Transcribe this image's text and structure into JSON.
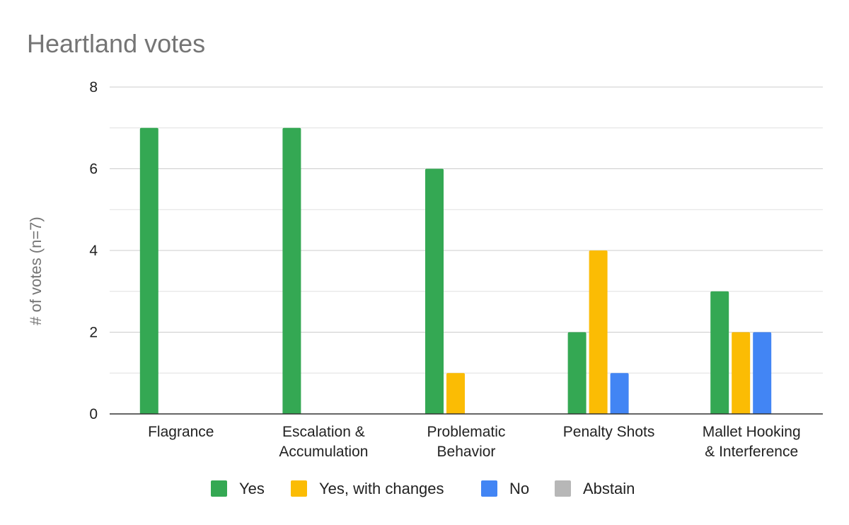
{
  "chart_data": {
    "type": "bar",
    "title": "Heartland votes",
    "xlabel": "",
    "ylabel": "# of votes (n=7)",
    "ylim": [
      0,
      8
    ],
    "yticks": [
      0,
      2,
      4,
      6,
      8
    ],
    "grid": true,
    "legend_position": "bottom",
    "categories": [
      [
        "Flagrance"
      ],
      [
        "Escalation &",
        "Accumulation"
      ],
      [
        "Problematic",
        "Behavior"
      ],
      [
        "Penalty Shots"
      ],
      [
        "Mallet Hooking",
        "& Interference"
      ]
    ],
    "series": [
      {
        "name": "Yes",
        "color": "#34a853",
        "values": [
          7,
          7,
          6,
          2,
          3
        ]
      },
      {
        "name": "Yes, with changes",
        "color": "#fbbc04",
        "values": [
          0,
          0,
          1,
          4,
          2
        ]
      },
      {
        "name": "No",
        "color": "#4285f4",
        "values": [
          0,
          0,
          0,
          1,
          2
        ]
      },
      {
        "name": "Abstain",
        "color": "#b7b7b7",
        "values": [
          0,
          0,
          0,
          0,
          0
        ]
      }
    ]
  }
}
